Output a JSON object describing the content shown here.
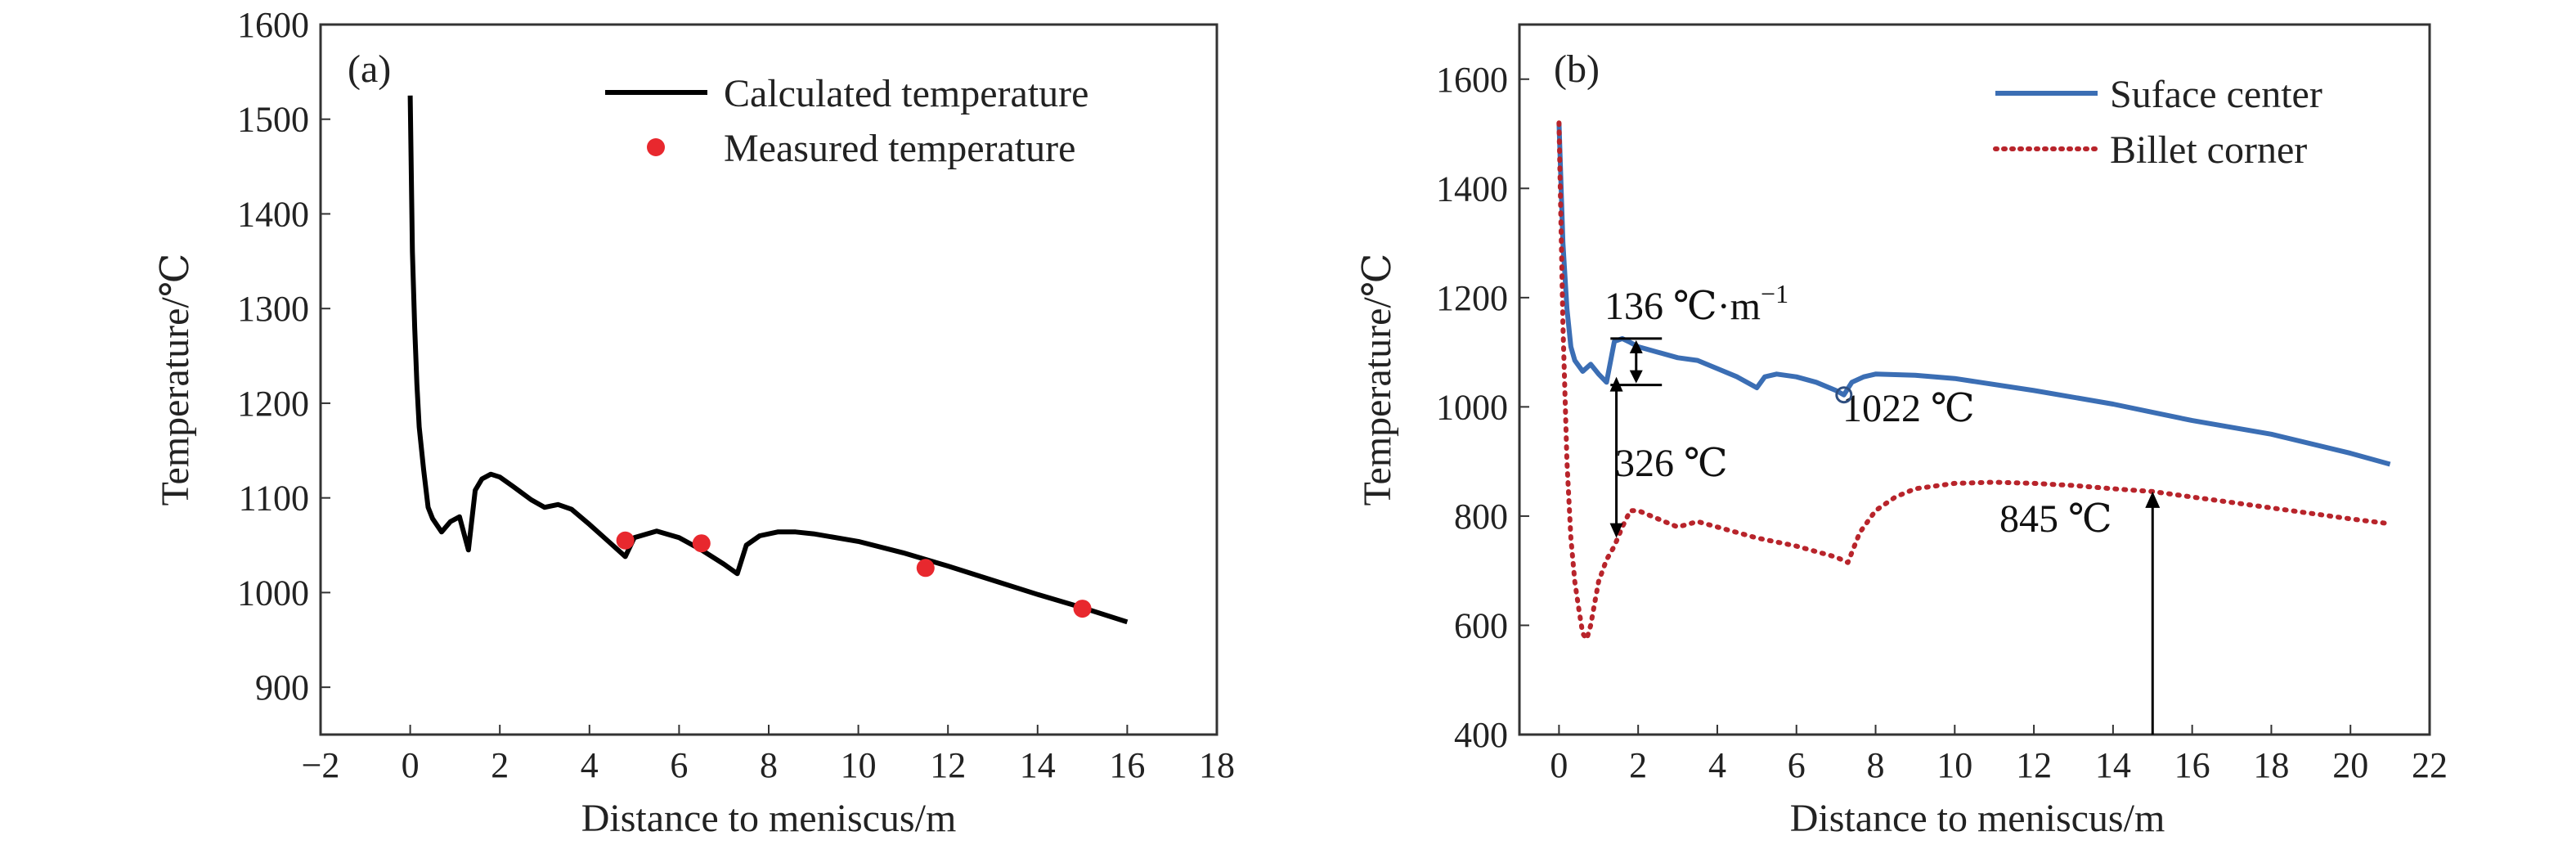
{
  "chart_data": [
    {
      "panel_label": "(a)",
      "type": "line",
      "xlabel": "Distance to meniscus/m",
      "ylabel": "Temperature/℃",
      "xlim": [
        -2,
        18
      ],
      "ylim": [
        850,
        1600
      ],
      "x_ticks": [
        -2,
        0,
        2,
        4,
        6,
        8,
        10,
        12,
        14,
        16,
        18
      ],
      "x_tick_labels": [
        "−2",
        "0",
        "2",
        "4",
        "6",
        "8",
        "10",
        "12",
        "14",
        "16",
        "18"
      ],
      "y_ticks": [
        900,
        1000,
        1100,
        1200,
        1300,
        1400,
        1500,
        1600
      ],
      "grid": false,
      "legend_position": "top-right",
      "series": [
        {
          "name": "Calculated temperature",
          "kind": "line",
          "style": "solid",
          "color": "#000000",
          "x": [
            0.0,
            0.05,
            0.1,
            0.15,
            0.2,
            0.3,
            0.4,
            0.5,
            0.7,
            0.9,
            1.1,
            1.3,
            1.45,
            1.6,
            1.8,
            2.0,
            2.3,
            2.7,
            3.0,
            3.3,
            3.6,
            4.0,
            4.4,
            4.8,
            5.0,
            5.5,
            6.0,
            6.5,
            7.0,
            7.3,
            7.5,
            7.8,
            8.2,
            8.6,
            9.0,
            10.0,
            11.0,
            12.0,
            13.0,
            14.0,
            15.0,
            16.0
          ],
          "y": [
            1525,
            1360,
            1280,
            1220,
            1175,
            1130,
            1090,
            1078,
            1064,
            1075,
            1080,
            1045,
            1108,
            1120,
            1125,
            1122,
            1112,
            1098,
            1090,
            1093,
            1088,
            1072,
            1055,
            1038,
            1058,
            1065,
            1058,
            1045,
            1030,
            1020,
            1050,
            1060,
            1064,
            1064,
            1062,
            1054,
            1042,
            1028,
            1013,
            998,
            984,
            969
          ]
        },
        {
          "name": "Measured temperature",
          "kind": "scatter",
          "color": "#e8282e",
          "x": [
            4.8,
            6.5,
            11.5,
            15.0
          ],
          "y": [
            1055,
            1052,
            1026,
            983
          ]
        }
      ]
    },
    {
      "panel_label": "(b)",
      "type": "line",
      "xlabel": "Distance to meniscus/m",
      "ylabel": "Temperature/℃",
      "xlim": [
        -1,
        22
      ],
      "ylim": [
        400,
        1700
      ],
      "x_ticks": [
        0,
        2,
        4,
        6,
        8,
        10,
        12,
        14,
        16,
        18,
        20,
        22
      ],
      "y_ticks": [
        400,
        600,
        800,
        1000,
        1200,
        1400,
        1600
      ],
      "grid": false,
      "legend_position": "top-right",
      "series": [
        {
          "name": "Suface center",
          "kind": "line",
          "style": "solid",
          "color": "#3b6eb4",
          "x": [
            0.0,
            0.1,
            0.2,
            0.3,
            0.4,
            0.6,
            0.8,
            1.0,
            1.2,
            1.4,
            1.6,
            1.8,
            2.0,
            2.5,
            3.0,
            3.5,
            4.0,
            4.5,
            5.0,
            5.2,
            5.5,
            6.0,
            6.5,
            7.0,
            7.2,
            7.4,
            7.7,
            8.0,
            9.0,
            10.0,
            12.0,
            14.0,
            16.0,
            18.0,
            20.0,
            21.0
          ],
          "y": [
            1520,
            1300,
            1180,
            1110,
            1085,
            1065,
            1078,
            1060,
            1045,
            1120,
            1125,
            1118,
            1110,
            1100,
            1090,
            1085,
            1070,
            1055,
            1035,
            1055,
            1060,
            1055,
            1045,
            1030,
            1022,
            1045,
            1055,
            1060,
            1058,
            1052,
            1030,
            1005,
            975,
            950,
            915,
            895
          ]
        },
        {
          "name": "Billet corner",
          "kind": "line",
          "style": "dotted",
          "color": "#b8242b",
          "x": [
            0.0,
            0.1,
            0.2,
            0.3,
            0.4,
            0.5,
            0.6,
            0.7,
            0.8,
            0.9,
            1.0,
            1.2,
            1.4,
            1.6,
            1.8,
            2.0,
            2.5,
            3.0,
            3.5,
            4.0,
            5.0,
            6.0,
            7.0,
            7.3,
            7.6,
            8.0,
            8.5,
            9.0,
            10.0,
            11.0,
            12.0,
            13.0,
            14.0,
            15.0,
            16.0,
            17.0,
            18.0,
            19.0,
            20.0,
            21.0
          ],
          "y": [
            1520,
            1150,
            900,
            760,
            680,
            630,
            585,
            575,
            600,
            640,
            680,
            720,
            745,
            780,
            810,
            810,
            795,
            780,
            790,
            780,
            760,
            745,
            725,
            715,
            770,
            810,
            835,
            850,
            860,
            862,
            860,
            856,
            850,
            845,
            835,
            825,
            815,
            805,
            795,
            786
          ]
        }
      ],
      "annotations": [
        {
          "text": "136 ℃·m",
          "sup": "−1",
          "x": 1.6,
          "y": 1180
        },
        {
          "text": "1022 ℃",
          "x": 7.5,
          "y": 985
        },
        {
          "text": "326 ℃",
          "x": 1.6,
          "y": 880
        },
        {
          "text": "845 ℃",
          "x": 11.7,
          "y": 770
        }
      ]
    }
  ]
}
